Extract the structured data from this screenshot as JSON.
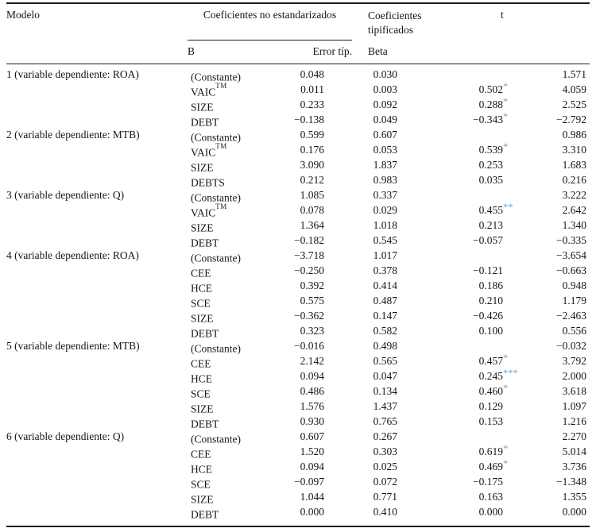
{
  "table": {
    "headers": {
      "modelo": "Modelo",
      "group_unstandardized": "Coeficientes no estandarizados",
      "group_standardized": "Coeficientes tipificados",
      "t": "t",
      "b": "B",
      "std_error": "Error típ.",
      "beta": "Beta"
    },
    "colors": {
      "significance_star": "#73a9d4",
      "text": "#161616",
      "rule": "#1b1b1b"
    },
    "models": [
      {
        "label": "1 (variable dependiente: ROA)",
        "rows": [
          {
            "variable": "(Constante)",
            "b": "0.048",
            "std_error": "0.030",
            "beta": "",
            "t": "1.571"
          },
          {
            "variable": "VAIC",
            "variable_sup": "TM",
            "b": "0.011",
            "std_error": "0.003",
            "beta": "0.502",
            "stars": "*",
            "t": "4.059"
          },
          {
            "variable": "SIZE",
            "b": "0.233",
            "std_error": "0.092",
            "beta": "0.288",
            "stars": "*",
            "t": "2.525"
          },
          {
            "variable": "DEBT",
            "b": "−0.138",
            "std_error": "0.049",
            "beta": "−0.343",
            "stars": "*",
            "t": "−2.792"
          }
        ]
      },
      {
        "label": "2 (variable dependiente: MTB)",
        "rows": [
          {
            "variable": "(Constante)",
            "b": "0.599",
            "std_error": "0.607",
            "beta": "",
            "t": "0.986"
          },
          {
            "variable": "VAIC",
            "variable_sup": "TM",
            "b": "0.176",
            "std_error": "0.053",
            "beta": "0.539",
            "stars": "*",
            "t": "3.310"
          },
          {
            "variable": "SIZE",
            "b": "3.090",
            "std_error": "1.837",
            "beta": "0.253",
            "t": "1.683"
          },
          {
            "variable": "DEBTS",
            "b": "0.212",
            "std_error": "0.983",
            "beta": "0.035",
            "t": "0.216"
          }
        ]
      },
      {
        "label": "3 (variable dependiente: Q)",
        "rows": [
          {
            "variable": "(Constante)",
            "b": "1.085",
            "std_error": "0.337",
            "beta": "",
            "t": "3.222"
          },
          {
            "variable": "VAIC",
            "variable_sup": "TM",
            "b": "0.078",
            "std_error": "0.029",
            "beta": "0.455",
            "stars": "**",
            "t": "2.642"
          },
          {
            "variable": "SIZE",
            "b": "1.364",
            "std_error": "1.018",
            "beta": "0.213",
            "t": "1.340"
          },
          {
            "variable": "DEBT",
            "b": "−0.182",
            "std_error": "0.545",
            "beta": "−0.057",
            "t": "−0.335"
          }
        ]
      },
      {
        "label": "4 (variable dependiente: ROA)",
        "rows": [
          {
            "variable": "(Constante)",
            "b": "−3.718",
            "std_error": "1.017",
            "beta": "",
            "t": "−3.654"
          },
          {
            "variable": "CEE",
            "b": "−0.250",
            "std_error": "0.378",
            "beta": "−0.121",
            "t": "−0.663"
          },
          {
            "variable": "HCE",
            "b": "0.392",
            "std_error": "0.414",
            "beta": "0.186",
            "t": "0.948"
          },
          {
            "variable": "SCE",
            "b": "0.575",
            "std_error": "0.487",
            "beta": "0.210",
            "t": "1.179"
          },
          {
            "variable": "SIZE",
            "b": "−0.362",
            "std_error": "0.147",
            "beta": "−0.426",
            "t": "−2.463"
          },
          {
            "variable": "DEBT",
            "b": "0.323",
            "std_error": "0.582",
            "beta": "0.100",
            "t": "0.556"
          }
        ]
      },
      {
        "label": "5 (variable dependiente: MTB)",
        "rows": [
          {
            "variable": "(Constante)",
            "b": "−0.016",
            "std_error": "0.498",
            "beta": "",
            "t": "−0.032"
          },
          {
            "variable": "CEE",
            "b": "2.142",
            "std_error": "0.565",
            "beta": "0.457",
            "stars": "*",
            "t": "3.792"
          },
          {
            "variable": "HCE",
            "b": "0.094",
            "std_error": "0.047",
            "beta": "0.245",
            "stars": "***",
            "t": "2.000"
          },
          {
            "variable": "SCE",
            "b": "0.486",
            "std_error": "0.134",
            "beta": "0.460",
            "stars": "*",
            "t": "3.618"
          },
          {
            "variable": "SIZE",
            "b": "1.576",
            "std_error": "1.437",
            "beta": "0.129",
            "t": "1.097"
          },
          {
            "variable": "DEBT",
            "b": "0.930",
            "std_error": "0.765",
            "beta": "0.153",
            "t": "1.216"
          }
        ]
      },
      {
        "label": "6 (variable dependiente: Q)",
        "rows": [
          {
            "variable": "(Constante)",
            "b": "0.607",
            "std_error": "0.267",
            "beta": "",
            "t": "2.270"
          },
          {
            "variable": "CEE",
            "b": "1.520",
            "std_error": "0.303",
            "beta": "0.619",
            "stars": "*",
            "t": "5.014"
          },
          {
            "variable": "HCE",
            "b": "0.094",
            "std_error": "0.025",
            "beta": "0.469",
            "stars": "*",
            "t": "3.736"
          },
          {
            "variable": "SCE",
            "b": "−0.097",
            "std_error": "0.072",
            "beta": "−0.175",
            "t": "−1.348"
          },
          {
            "variable": "SIZE",
            "b": "1.044",
            "std_error": "0.771",
            "beta": "0.163",
            "t": "1.355"
          },
          {
            "variable": "DEBT",
            "b": "0.000",
            "std_error": "0.410",
            "beta": "0.000",
            "t": "0.000"
          }
        ]
      }
    ]
  }
}
